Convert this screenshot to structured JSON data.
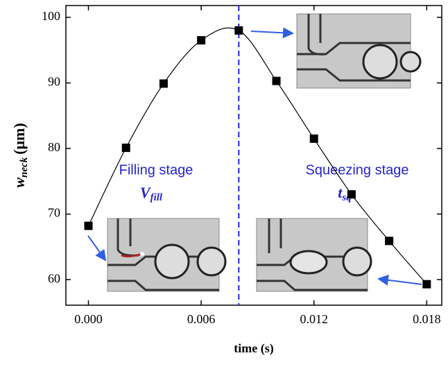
{
  "chart_data": {
    "type": "line",
    "x": [
      0.0,
      0.002,
      0.004,
      0.006,
      0.008,
      0.01,
      0.012,
      0.014,
      0.016,
      0.018
    ],
    "series": [
      {
        "color": "#000000",
        "values": [
          68.2,
          80.1,
          89.9,
          96.5,
          98.0,
          90.3,
          81.5,
          73.0,
          65.9,
          59.3
        ]
      }
    ],
    "xlim": [
      -0.0012,
      0.0188
    ],
    "ylim": [
      56.1,
      101.8
    ],
    "xticks": [
      {
        "value": 0.0,
        "label": "0.000"
      },
      {
        "value": 0.006,
        "label": "0.006"
      },
      {
        "value": 0.012,
        "label": "0.012"
      },
      {
        "value": 0.018,
        "label": "0.018"
      }
    ],
    "yticks": [
      60,
      70,
      80,
      90,
      100
    ],
    "x_label": "time (s)",
    "y_label": {
      "symbol": "w",
      "subscript": "neck",
      "unit": "(μm)"
    },
    "vline": {
      "x": 0.008,
      "color": "#2222dd"
    },
    "annotations": [
      {
        "text": "Filling stage",
        "symbol": "V",
        "subscript": "fill"
      },
      {
        "text": "Squeezing stage",
        "symbol": "t",
        "subscript": "sq"
      }
    ]
  }
}
